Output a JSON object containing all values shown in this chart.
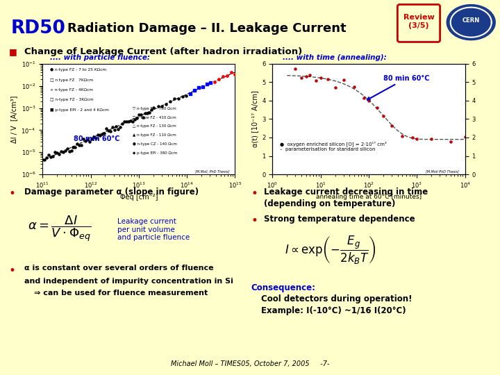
{
  "bg_color": "#ffffcc",
  "title_text": "Radiation Damage – II. Leakage Current",
  "rd50_text": "RD50",
  "rd50_color": "#0000cc",
  "review_text": "Review\n(3/5)",
  "review_color": "#cc0000",
  "bullet_color": "#cc0000",
  "bullet1_text": "Change of Leakage Current (after hadron irradiation)",
  "left_plot_title": ".... with particle fluence:",
  "right_plot_title": ".... with time (annealing):",
  "left_annot": "80 min 60°C",
  "right_annot": "80 min 60°C",
  "left_xlabel": "Φeq [cm⁻²]",
  "left_ylabel": "ΔI / V  [A/cm³]",
  "right_xlabel": "annealing time at 60°C [minutes]",
  "right_ylabel": "α(t) [10⁻¹⁷ A/cm]",
  "damage_param_title": "Damage parameter α (slope in figure)",
  "leakage_text": "Leakage current\nper unit volume\nand particle fluence",
  "bullet_left2_line1": "α is constant over several orders of fluence",
  "bullet_left2_line2": "and independent of impurity concentration in Si",
  "bullet_left2_line3": "⇒ can be used for fluence measurement",
  "right_bullet1_line1": "Leakage current decreasing in time",
  "right_bullet1_line2": "(depending on temperature)",
  "right_bullet2": "Strong temperature dependence",
  "consequence_title": "Consequence:",
  "consequence_line1": "Cool detectors during operation!",
  "consequence_line2": "Example: I(-10°C) ~1/16 I(20°C)",
  "footer_text": "Michael Moll – TIMES05, October 7, 2005     -7-"
}
